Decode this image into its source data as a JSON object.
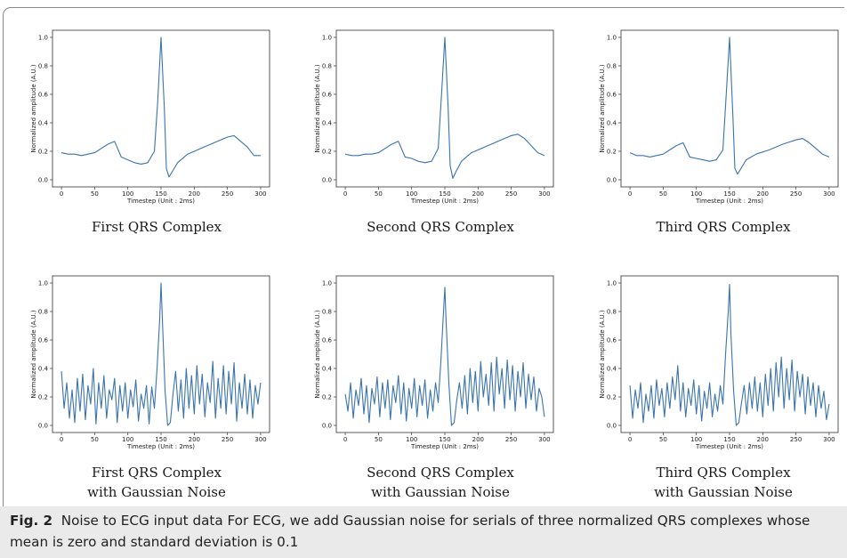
{
  "figure_caption": {
    "label": "Fig. 2",
    "text": "Noise to ECG input data For ECG, we add Gaussian noise for serials of three normalized QRS complexes whose mean is zero and standard deviation is 0.1"
  },
  "colors": {
    "line": "#3a74ad"
  },
  "panels": [
    {
      "caption": [
        "First QRS Complex"
      ]
    },
    {
      "caption": [
        "Second QRS Complex"
      ]
    },
    {
      "caption": [
        "Third QRS Complex"
      ]
    },
    {
      "caption": [
        "First QRS Complex",
        "with Gaussian Noise"
      ]
    },
    {
      "caption": [
        "Second QRS Complex",
        "with Gaussian Noise"
      ]
    },
    {
      "caption": [
        "Third QRS Complex",
        "with Gaussian Noise"
      ]
    }
  ],
  "chart_data": [
    {
      "type": "line",
      "xlabel": "Timestep (Unit : 2ms)",
      "ylabel": "Normalized amplitude (A.U.)",
      "xlim": [
        0,
        300
      ],
      "ylim": [
        0,
        1
      ],
      "xticks": [
        0,
        50,
        100,
        150,
        200,
        250,
        300
      ],
      "yticks": [
        0.0,
        0.2,
        0.4,
        0.6,
        0.8,
        1.0
      ],
      "x": [
        0,
        10,
        20,
        30,
        40,
        50,
        60,
        70,
        80,
        90,
        100,
        110,
        120,
        130,
        140,
        145,
        150,
        155,
        158,
        162,
        166,
        175,
        190,
        210,
        230,
        250,
        260,
        270,
        280,
        290,
        300
      ],
      "y": [
        0.19,
        0.18,
        0.18,
        0.17,
        0.18,
        0.19,
        0.22,
        0.25,
        0.27,
        0.16,
        0.14,
        0.12,
        0.11,
        0.12,
        0.2,
        0.55,
        1.0,
        0.5,
        0.08,
        0.02,
        0.05,
        0.12,
        0.18,
        0.22,
        0.26,
        0.3,
        0.31,
        0.27,
        0.23,
        0.17,
        0.17
      ]
    },
    {
      "type": "line",
      "xlabel": "Timestep (Unit : 2ms)",
      "ylabel": "Normalized amplitude (A.U.)",
      "xlim": [
        0,
        300
      ],
      "ylim": [
        0,
        1
      ],
      "xticks": [
        0,
        50,
        100,
        150,
        200,
        250,
        300
      ],
      "yticks": [
        0.0,
        0.2,
        0.4,
        0.6,
        0.8,
        1.0
      ],
      "x": [
        0,
        10,
        20,
        30,
        40,
        50,
        60,
        70,
        80,
        90,
        100,
        110,
        120,
        130,
        140,
        145,
        150,
        155,
        158,
        162,
        166,
        175,
        190,
        210,
        230,
        250,
        260,
        270,
        280,
        290,
        300
      ],
      "y": [
        0.18,
        0.17,
        0.17,
        0.18,
        0.18,
        0.19,
        0.22,
        0.25,
        0.27,
        0.16,
        0.15,
        0.13,
        0.12,
        0.13,
        0.22,
        0.6,
        1.0,
        0.5,
        0.1,
        0.01,
        0.05,
        0.13,
        0.19,
        0.23,
        0.27,
        0.31,
        0.32,
        0.29,
        0.24,
        0.19,
        0.17
      ]
    },
    {
      "type": "line",
      "xlabel": "Timestep (Unit : 2ms)",
      "ylabel": "Normalized amplitude (A.U.)",
      "xlim": [
        0,
        300
      ],
      "ylim": [
        0,
        1
      ],
      "xticks": [
        0,
        50,
        100,
        150,
        200,
        250,
        300
      ],
      "yticks": [
        0.0,
        0.2,
        0.4,
        0.6,
        0.8,
        1.0
      ],
      "x": [
        0,
        10,
        20,
        30,
        40,
        50,
        60,
        70,
        80,
        90,
        100,
        110,
        120,
        130,
        140,
        145,
        150,
        155,
        158,
        162,
        166,
        175,
        190,
        210,
        230,
        250,
        260,
        270,
        280,
        290,
        300
      ],
      "y": [
        0.19,
        0.17,
        0.17,
        0.16,
        0.17,
        0.18,
        0.21,
        0.24,
        0.26,
        0.16,
        0.15,
        0.14,
        0.13,
        0.14,
        0.21,
        0.6,
        1.0,
        0.45,
        0.08,
        0.04,
        0.07,
        0.14,
        0.18,
        0.21,
        0.25,
        0.28,
        0.29,
        0.26,
        0.22,
        0.18,
        0.16
      ]
    },
    {
      "type": "line",
      "xlabel": "Timestep (Unit : 2ms)",
      "ylabel": "Normalized amplitude (A.U.)",
      "xlim": [
        0,
        300
      ],
      "ylim": [
        0,
        1
      ],
      "xticks": [
        0,
        50,
        100,
        150,
        200,
        250,
        300
      ],
      "yticks": [
        0.0,
        0.2,
        0.4,
        0.6,
        0.8,
        1.0
      ],
      "x": [
        0,
        4,
        8,
        12,
        16,
        20,
        24,
        28,
        32,
        36,
        40,
        44,
        48,
        52,
        56,
        60,
        64,
        68,
        72,
        76,
        80,
        84,
        88,
        92,
        96,
        100,
        104,
        108,
        112,
        116,
        120,
        124,
        128,
        132,
        136,
        140,
        144,
        148,
        150,
        152,
        156,
        160,
        164,
        168,
        172,
        176,
        180,
        184,
        188,
        192,
        196,
        200,
        204,
        208,
        212,
        216,
        220,
        224,
        228,
        232,
        236,
        240,
        244,
        248,
        252,
        256,
        260,
        264,
        268,
        272,
        276,
        280,
        284,
        288,
        292,
        296,
        300
      ],
      "y": [
        0.38,
        0.12,
        0.3,
        0.05,
        0.25,
        0.02,
        0.33,
        0.1,
        0.36,
        0.04,
        0.28,
        0.15,
        0.4,
        0.01,
        0.3,
        0.12,
        0.35,
        0.05,
        0.25,
        0.18,
        0.33,
        0.02,
        0.28,
        0.1,
        0.3,
        0.05,
        0.25,
        0.13,
        0.32,
        0.03,
        0.22,
        0.12,
        0.28,
        0.01,
        0.27,
        0.12,
        0.4,
        0.75,
        1.0,
        0.75,
        0.25,
        0.0,
        0.02,
        0.22,
        0.38,
        0.1,
        0.32,
        0.05,
        0.4,
        0.12,
        0.35,
        0.08,
        0.42,
        0.15,
        0.36,
        0.06,
        0.3,
        0.16,
        0.45,
        0.05,
        0.33,
        0.12,
        0.42,
        0.08,
        0.38,
        0.15,
        0.44,
        0.03,
        0.3,
        0.12,
        0.36,
        0.08,
        0.32,
        0.05,
        0.28,
        0.15,
        0.3
      ]
    },
    {
      "type": "line",
      "xlabel": "Timestep (Unit : 2ms)",
      "ylabel": "Normalized amplitude (A.U.)",
      "xlim": [
        0,
        300
      ],
      "ylim": [
        0,
        1
      ],
      "xticks": [
        0,
        50,
        100,
        150,
        200,
        250,
        300
      ],
      "yticks": [
        0.0,
        0.2,
        0.4,
        0.6,
        0.8,
        1.0
      ],
      "x": [
        0,
        4,
        8,
        12,
        16,
        20,
        24,
        28,
        32,
        36,
        40,
        44,
        48,
        52,
        56,
        60,
        64,
        68,
        72,
        76,
        80,
        84,
        88,
        92,
        96,
        100,
        104,
        108,
        112,
        116,
        120,
        124,
        128,
        132,
        136,
        140,
        144,
        148,
        150,
        152,
        156,
        160,
        164,
        168,
        172,
        176,
        180,
        184,
        188,
        192,
        196,
        200,
        204,
        208,
        212,
        216,
        220,
        224,
        228,
        232,
        236,
        240,
        244,
        248,
        252,
        256,
        260,
        264,
        268,
        272,
        276,
        280,
        284,
        288,
        292,
        296,
        300
      ],
      "y": [
        0.22,
        0.1,
        0.3,
        0.05,
        0.25,
        0.14,
        0.33,
        0.08,
        0.28,
        0.02,
        0.26,
        0.15,
        0.34,
        0.06,
        0.3,
        0.12,
        0.32,
        0.04,
        0.28,
        0.16,
        0.35,
        0.08,
        0.3,
        0.03,
        0.26,
        0.12,
        0.33,
        0.06,
        0.28,
        0.14,
        0.32,
        0.05,
        0.25,
        0.1,
        0.3,
        0.16,
        0.45,
        0.8,
        0.97,
        0.72,
        0.3,
        0.0,
        0.02,
        0.18,
        0.3,
        0.12,
        0.35,
        0.08,
        0.4,
        0.16,
        0.38,
        0.1,
        0.45,
        0.2,
        0.36,
        0.14,
        0.44,
        0.1,
        0.48,
        0.22,
        0.4,
        0.12,
        0.46,
        0.18,
        0.42,
        0.1,
        0.38,
        0.2,
        0.44,
        0.12,
        0.36,
        0.18,
        0.34,
        0.1,
        0.26,
        0.2,
        0.06
      ]
    },
    {
      "type": "line",
      "xlabel": "Timestep (Unit : 2ms)",
      "ylabel": "Normalized amplitude (A.U.)",
      "xlim": [
        0,
        300
      ],
      "ylim": [
        0,
        1
      ],
      "xticks": [
        0,
        50,
        100,
        150,
        200,
        250,
        300
      ],
      "yticks": [
        0.0,
        0.2,
        0.4,
        0.6,
        0.8,
        1.0
      ],
      "x": [
        0,
        4,
        8,
        12,
        16,
        20,
        24,
        28,
        32,
        36,
        40,
        44,
        48,
        52,
        56,
        60,
        64,
        68,
        72,
        76,
        80,
        84,
        88,
        92,
        96,
        100,
        104,
        108,
        112,
        116,
        120,
        124,
        128,
        132,
        136,
        140,
        144,
        148,
        150,
        152,
        156,
        160,
        164,
        168,
        172,
        176,
        180,
        184,
        188,
        192,
        196,
        200,
        204,
        208,
        212,
        216,
        220,
        224,
        228,
        232,
        236,
        240,
        244,
        248,
        252,
        256,
        260,
        264,
        268,
        272,
        276,
        280,
        284,
        288,
        292,
        296,
        300
      ],
      "y": [
        0.28,
        0.05,
        0.25,
        0.12,
        0.3,
        0.02,
        0.22,
        0.1,
        0.28,
        0.05,
        0.32,
        0.14,
        0.26,
        0.06,
        0.3,
        0.12,
        0.34,
        0.18,
        0.42,
        0.1,
        0.3,
        0.06,
        0.26,
        0.14,
        0.32,
        0.08,
        0.28,
        0.03,
        0.24,
        0.12,
        0.3,
        0.06,
        0.22,
        0.1,
        0.28,
        0.15,
        0.5,
        0.8,
        0.99,
        0.65,
        0.25,
        0.0,
        0.02,
        0.16,
        0.28,
        0.08,
        0.3,
        0.12,
        0.34,
        0.1,
        0.3,
        0.06,
        0.36,
        0.14,
        0.4,
        0.1,
        0.44,
        0.2,
        0.48,
        0.12,
        0.4,
        0.18,
        0.46,
        0.1,
        0.38,
        0.2,
        0.36,
        0.08,
        0.34,
        0.14,
        0.3,
        0.06,
        0.28,
        0.12,
        0.24,
        0.04,
        0.15
      ]
    }
  ]
}
